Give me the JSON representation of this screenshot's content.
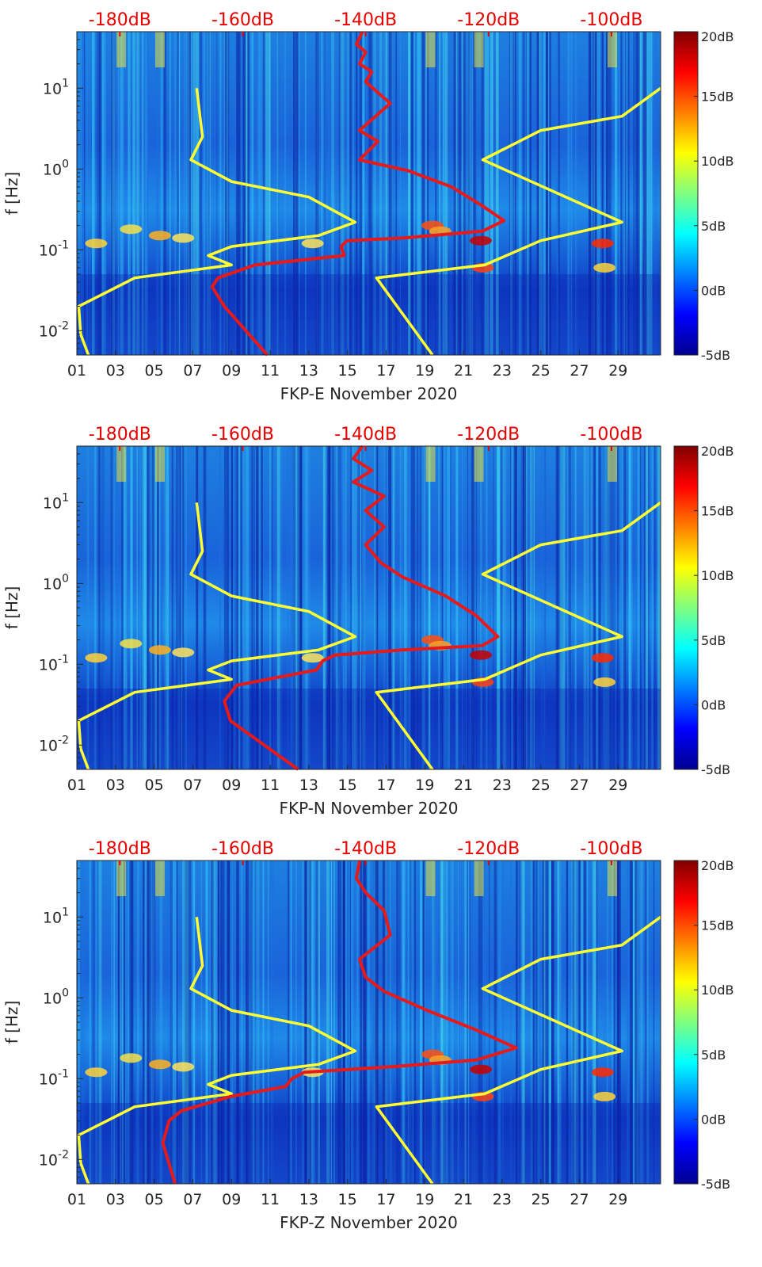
{
  "chart_data": [
    {
      "type": "heatmap",
      "xlabel": "FKP-E November 2020",
      "ylabel": "f [Hz]",
      "xticks": [
        "01",
        "03",
        "05",
        "07",
        "09",
        "11",
        "13",
        "15",
        "17",
        "19",
        "21",
        "23",
        "25",
        "27",
        "29"
      ],
      "xlim": [
        1,
        31.2
      ],
      "yscale": "log",
      "ylim": [
        0.005,
        50
      ],
      "yticks": [
        {
          "label": "10",
          "exp": "-2",
          "value": 0.01
        },
        {
          "label": "10",
          "exp": "-1",
          "value": 0.1
        },
        {
          "label": "10",
          "exp": "0",
          "value": 1
        },
        {
          "label": "10",
          "exp": "1",
          "value": 10
        }
      ],
      "top_axis_ticks": [
        "-180dB",
        "-160dB",
        "-140dB",
        "-120dB",
        "-100dB"
      ],
      "top_axis_values": [
        -180,
        -160,
        -140,
        -120,
        -100
      ],
      "top_axis_lim": [
        -187,
        -92
      ],
      "colorbar": {
        "ticks": [
          "20dB",
          "15dB",
          "10dB",
          "5dB",
          "0dB",
          "-5dB"
        ],
        "range": [
          -5,
          20
        ],
        "colormap": "jet"
      },
      "series": [
        {
          "color": "#ffff33",
          "points": [
            [
              7.2,
              10
            ],
            [
              7.5,
              2.5
            ],
            [
              6.9,
              1.3
            ],
            [
              9.0,
              0.7
            ],
            [
              13.0,
              0.45
            ],
            [
              15.4,
              0.22
            ],
            [
              13.5,
              0.15
            ],
            [
              9.0,
              0.11
            ],
            [
              7.8,
              0.085
            ],
            [
              9.0,
              0.065
            ],
            [
              4.0,
              0.045
            ],
            [
              1.1,
              0.02
            ],
            [
              1.2,
              0.009
            ],
            [
              1.6,
              0.005
            ]
          ]
        },
        {
          "color": "#ffff33",
          "points": [
            [
              31.2,
              10
            ],
            [
              29.2,
              4.5
            ],
            [
              25.0,
              3.0
            ],
            [
              22.0,
              1.3
            ],
            [
              29.2,
              0.22
            ],
            [
              25.0,
              0.13
            ],
            [
              22.1,
              0.065
            ],
            [
              16.5,
              0.045
            ],
            [
              19.4,
              0.005
            ]
          ]
        },
        {
          "color": "#e61a1a",
          "axis": "top",
          "points": [
            [
              -140.5,
              50
            ],
            [
              -141.5,
              35
            ],
            [
              -140,
              28
            ],
            [
              -141,
              20
            ],
            [
              -139,
              16
            ],
            [
              -140,
              12
            ],
            [
              -136,
              6.5
            ],
            [
              -141,
              3.0
            ],
            [
              -138,
              2.2
            ],
            [
              -141,
              1.3
            ],
            [
              -133,
              0.95
            ],
            [
              -126,
              0.6
            ],
            [
              -121,
              0.35
            ],
            [
              -117.5,
              0.23
            ],
            [
              -121,
              0.17
            ],
            [
              -134,
              0.14
            ],
            [
              -143,
              0.13
            ],
            [
              -144,
              0.11
            ],
            [
              -143.5,
              0.085
            ],
            [
              -158,
              0.065
            ],
            [
              -164,
              0.045
            ],
            [
              -165,
              0.035
            ],
            [
              -163,
              0.02
            ],
            [
              -156,
              0.005
            ]
          ]
        }
      ]
    },
    {
      "type": "heatmap",
      "xlabel": "FKP-N November 2020",
      "ylabel": "f [Hz]",
      "xticks": [
        "01",
        "03",
        "05",
        "07",
        "09",
        "11",
        "13",
        "15",
        "17",
        "19",
        "21",
        "23",
        "25",
        "27",
        "29"
      ],
      "xlim": [
        1,
        31.2
      ],
      "yscale": "log",
      "ylim": [
        0.005,
        50
      ],
      "yticks": [
        {
          "label": "10",
          "exp": "-2",
          "value": 0.01
        },
        {
          "label": "10",
          "exp": "-1",
          "value": 0.1
        },
        {
          "label": "10",
          "exp": "0",
          "value": 1
        },
        {
          "label": "10",
          "exp": "1",
          "value": 10
        }
      ],
      "top_axis_ticks": [
        "-180dB",
        "-160dB",
        "-140dB",
        "-120dB",
        "-100dB"
      ],
      "top_axis_values": [
        -180,
        -160,
        -140,
        -120,
        -100
      ],
      "top_axis_lim": [
        -187,
        -92
      ],
      "colorbar": {
        "ticks": [
          "20dB",
          "15dB",
          "10dB",
          "5dB",
          "0dB",
          "-5dB"
        ],
        "range": [
          -5,
          20
        ],
        "colormap": "jet"
      },
      "series": [
        {
          "color": "#ffff33",
          "points": [
            [
              7.2,
              10
            ],
            [
              7.5,
              2.5
            ],
            [
              6.9,
              1.3
            ],
            [
              9.0,
              0.7
            ],
            [
              13.0,
              0.45
            ],
            [
              15.4,
              0.22
            ],
            [
              13.5,
              0.15
            ],
            [
              9.0,
              0.11
            ],
            [
              7.8,
              0.085
            ],
            [
              9.0,
              0.065
            ],
            [
              4.0,
              0.045
            ],
            [
              1.1,
              0.02
            ],
            [
              1.2,
              0.009
            ],
            [
              1.6,
              0.005
            ]
          ]
        },
        {
          "color": "#ffff33",
          "points": [
            [
              31.2,
              10
            ],
            [
              29.2,
              4.5
            ],
            [
              25.0,
              3.0
            ],
            [
              22.0,
              1.3
            ],
            [
              29.2,
              0.22
            ],
            [
              25.0,
              0.13
            ],
            [
              22.1,
              0.065
            ],
            [
              16.5,
              0.045
            ],
            [
              19.4,
              0.005
            ]
          ]
        },
        {
          "color": "#e61a1a",
          "axis": "top",
          "points": [
            [
              -140.5,
              50
            ],
            [
              -142,
              35
            ],
            [
              -139,
              25
            ],
            [
              -142,
              18
            ],
            [
              -137,
              12
            ],
            [
              -140,
              8
            ],
            [
              -137,
              5
            ],
            [
              -140,
              3.0
            ],
            [
              -137.5,
              1.8
            ],
            [
              -134,
              1.2
            ],
            [
              -127,
              0.7
            ],
            [
              -122,
              0.4
            ],
            [
              -118.5,
              0.22
            ],
            [
              -121,
              0.17
            ],
            [
              -134,
              0.15
            ],
            [
              -145,
              0.13
            ],
            [
              -147,
              0.11
            ],
            [
              -148,
              0.085
            ],
            [
              -161,
              0.055
            ],
            [
              -163,
              0.035
            ],
            [
              -162,
              0.02
            ],
            [
              -151,
              0.005
            ]
          ]
        }
      ]
    },
    {
      "type": "heatmap",
      "xlabel": "FKP-Z November 2020",
      "ylabel": "f [Hz]",
      "xticks": [
        "01",
        "03",
        "05",
        "07",
        "09",
        "11",
        "13",
        "15",
        "17",
        "19",
        "21",
        "23",
        "25",
        "27",
        "29"
      ],
      "xlim": [
        1,
        31.2
      ],
      "yscale": "log",
      "ylim": [
        0.005,
        50
      ],
      "yticks": [
        {
          "label": "10",
          "exp": "-2",
          "value": 0.01
        },
        {
          "label": "10",
          "exp": "-1",
          "value": 0.1
        },
        {
          "label": "10",
          "exp": "0",
          "value": 1
        },
        {
          "label": "10",
          "exp": "1",
          "value": 10
        }
      ],
      "top_axis_ticks": [
        "-180dB",
        "-160dB",
        "-140dB",
        "-120dB",
        "-100dB"
      ],
      "top_axis_values": [
        -180,
        -160,
        -140,
        -120,
        -100
      ],
      "top_axis_lim": [
        -187,
        -92
      ],
      "colorbar": {
        "ticks": [
          "20dB",
          "15dB",
          "10dB",
          "5dB",
          "0dB",
          "-5dB"
        ],
        "range": [
          -5,
          20
        ],
        "colormap": "jet"
      },
      "series": [
        {
          "color": "#ffff33",
          "points": [
            [
              7.2,
              10
            ],
            [
              7.5,
              2.5
            ],
            [
              6.9,
              1.3
            ],
            [
              9.0,
              0.7
            ],
            [
              13.0,
              0.45
            ],
            [
              15.4,
              0.22
            ],
            [
              13.5,
              0.15
            ],
            [
              9.0,
              0.11
            ],
            [
              7.8,
              0.085
            ],
            [
              9.0,
              0.065
            ],
            [
              4.0,
              0.045
            ],
            [
              1.1,
              0.02
            ],
            [
              1.2,
              0.009
            ],
            [
              1.6,
              0.005
            ]
          ]
        },
        {
          "color": "#ffff33",
          "points": [
            [
              31.2,
              10
            ],
            [
              29.2,
              4.5
            ],
            [
              25.0,
              3.0
            ],
            [
              22.0,
              1.3
            ],
            [
              29.2,
              0.22
            ],
            [
              25.0,
              0.13
            ],
            [
              22.1,
              0.065
            ],
            [
              16.5,
              0.045
            ],
            [
              19.4,
              0.005
            ]
          ]
        },
        {
          "color": "#e61a1a",
          "axis": "top",
          "points": [
            [
              -141,
              50
            ],
            [
              -141.5,
              30
            ],
            [
              -140,
              20
            ],
            [
              -137,
              12
            ],
            [
              -136,
              6
            ],
            [
              -141,
              3.0
            ],
            [
              -140,
              1.8
            ],
            [
              -137,
              1.2
            ],
            [
              -130,
              0.7
            ],
            [
              -122,
              0.4
            ],
            [
              -115.5,
              0.24
            ],
            [
              -122,
              0.17
            ],
            [
              -136,
              0.14
            ],
            [
              -150,
              0.12
            ],
            [
              -152,
              0.1
            ],
            [
              -153,
              0.08
            ],
            [
              -162,
              0.06
            ],
            [
              -170,
              0.04
            ],
            [
              -172,
              0.03
            ],
            [
              -173,
              0.016
            ],
            [
              -171,
              0.005
            ]
          ]
        }
      ]
    }
  ]
}
